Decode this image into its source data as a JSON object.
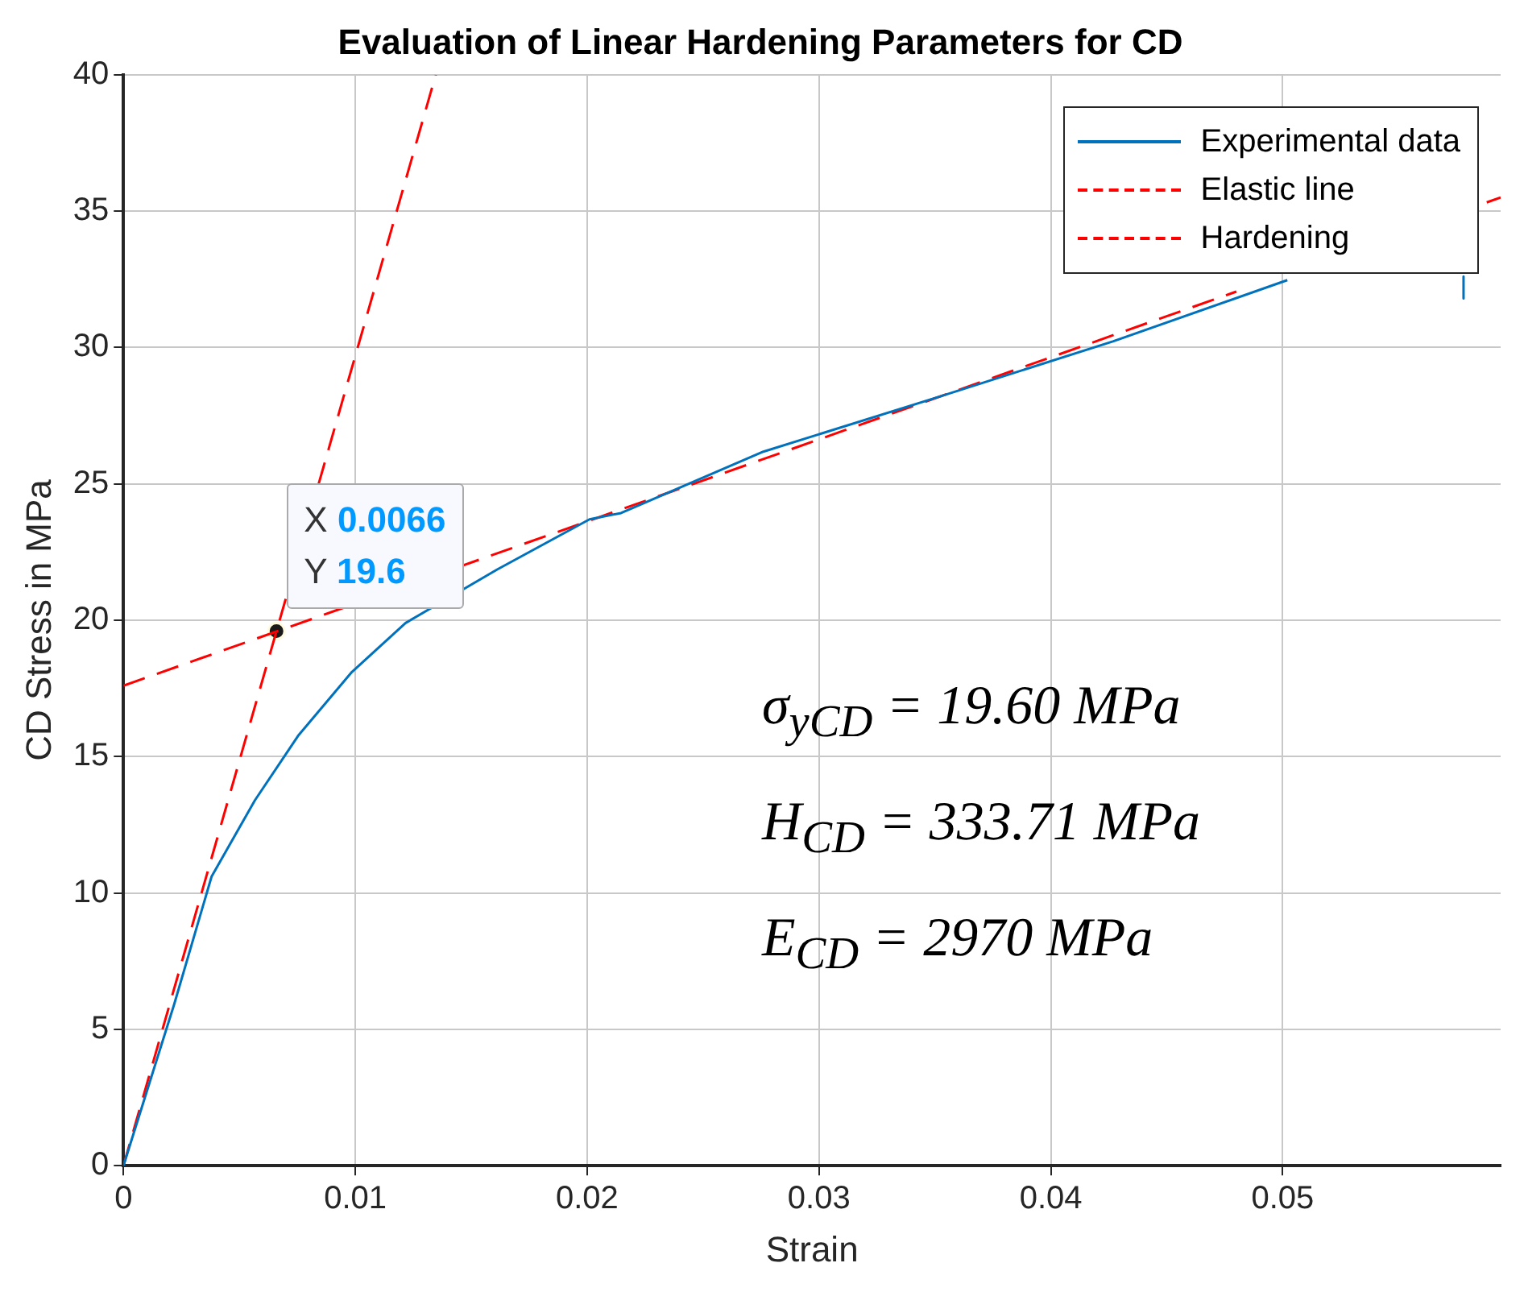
{
  "chart_data": {
    "type": "line",
    "title": "Evaluation of Linear Hardening Parameters for CD",
    "xlabel": "Strain",
    "ylabel": "CD Stress in MPa",
    "xlim": [
      0,
      0.0594
    ],
    "xticks": [
      0,
      0.01,
      0.02,
      0.03,
      0.04,
      0.05
    ],
    "ylim": [
      0,
      40
    ],
    "yticks": [
      0,
      5,
      10,
      15,
      20,
      25,
      30,
      35,
      40
    ],
    "grid": true,
    "legend": "top right",
    "series": [
      {
        "name": "Experimental data",
        "color": "#0072bd",
        "line_style": "solid",
        "x": [
          0,
          0.00218,
          0.0038,
          0.00567,
          0.00753,
          0.00985,
          0.01217,
          0.01612,
          0.0201,
          0.02146,
          0.0276,
          0.0352,
          0.0427,
          0.0502,
          0.054,
          0.0578,
          0.0578
        ],
        "values": [
          0,
          5.9,
          10.6,
          13.4,
          15.76,
          18.1,
          19.9,
          21.86,
          23.7,
          23.93,
          26.18,
          28.2,
          30.23,
          32.47,
          null,
          32.6,
          31.8
        ]
      },
      {
        "name": "Elastic line",
        "color": "#ff0000",
        "line_style": "dashed",
        "x": [
          0,
          0.01347
        ],
        "values": [
          0,
          40
        ]
      },
      {
        "name": "Hardening",
        "color": "#ff0000",
        "line_style": "dashed",
        "x": [
          0,
          0.048,
          0.053,
          0.0588,
          0.0594
        ],
        "values": [
          17.6,
          32.05,
          null,
          35.32,
          35.5
        ]
      },
      {
        "type": "scatter",
        "color": "#1a1a1a",
        "marker": "circle",
        "x": [
          0.0066
        ],
        "values": [
          19.6
        ]
      }
    ],
    "annotations": [
      {
        "text": "X 0.0066",
        "x": 0.0066,
        "y": 19.6
      },
      {
        "text": "Y 19.6",
        "x": 0.0066,
        "y": 19.6
      },
      "σ$_{y}$$_{CD}$ = 19.60 MPa",
      "H$_{CD}$ = 333.71 MPa",
      "E$_{CD}$ = 2970 MPa"
    ]
  }
}
